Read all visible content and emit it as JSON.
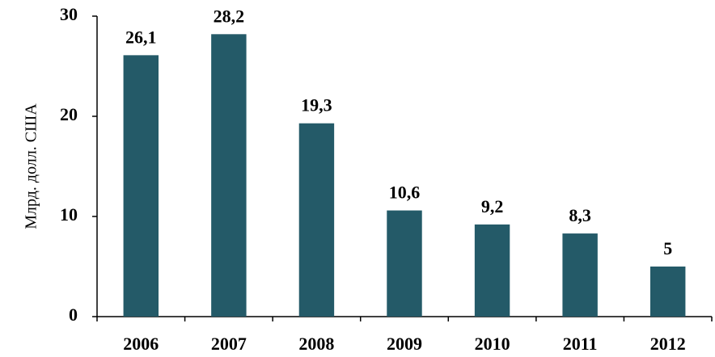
{
  "chart_data": {
    "type": "bar",
    "y_label": "Млрд. долл. США",
    "categories": [
      "2006",
      "2007",
      "2008",
      "2009",
      "2010",
      "2011",
      "2012"
    ],
    "values": [
      26.1,
      28.2,
      19.3,
      10.6,
      9.2,
      8.3,
      5
    ],
    "value_labels": [
      "26,1",
      "28,2",
      "19,3",
      "10,6",
      "9,2",
      "8,3",
      "5"
    ],
    "color": "#245a68",
    "ylim": [
      0,
      30
    ],
    "yticks": [
      0,
      10,
      20,
      30
    ],
    "grid": false
  }
}
